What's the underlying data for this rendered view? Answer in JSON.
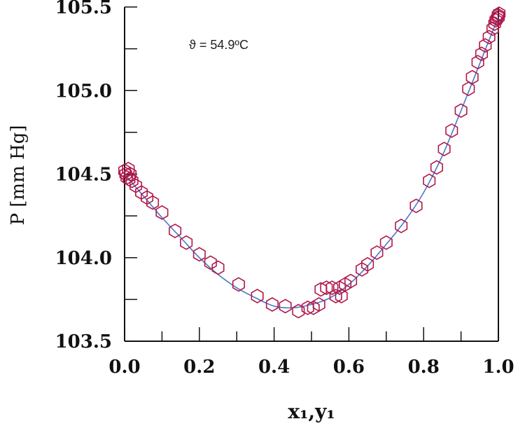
{
  "chart_data": {
    "type": "scatter",
    "title": "",
    "annotation": "ϑ = 54.9ºC",
    "xlabel": "x₁,y₁",
    "ylabel": "P [mm Hg]",
    "xlim": [
      0.0,
      1.0
    ],
    "ylim": [
      103.5,
      105.5
    ],
    "xticks": [
      "0.0",
      "0.2",
      "0.4",
      "0.6",
      "0.8",
      "1.0"
    ],
    "yticks": [
      "103.5",
      "104.0",
      "104.5",
      "105.0",
      "105.5"
    ],
    "grid": false,
    "colors": {
      "points": "#b0184a",
      "curve": "#4a78c8",
      "axis": "#111111"
    },
    "series": [
      {
        "type": "scatter",
        "marker": "hexagon-open",
        "points": [
          [
            0.0,
            104.52
          ],
          [
            0.003,
            104.5
          ],
          [
            0.006,
            104.48
          ],
          [
            0.01,
            104.53
          ],
          [
            0.012,
            104.47
          ],
          [
            0.015,
            104.5
          ],
          [
            0.02,
            104.46
          ],
          [
            0.03,
            104.43
          ],
          [
            0.045,
            104.39
          ],
          [
            0.06,
            104.36
          ],
          [
            0.075,
            104.33
          ],
          [
            0.1,
            104.27
          ],
          [
            0.135,
            104.16
          ],
          [
            0.165,
            104.09
          ],
          [
            0.2,
            104.02
          ],
          [
            0.23,
            103.97
          ],
          [
            0.25,
            103.94
          ],
          [
            0.305,
            103.84
          ],
          [
            0.355,
            103.77
          ],
          [
            0.395,
            103.72
          ],
          [
            0.43,
            103.71
          ],
          [
            0.465,
            103.68
          ],
          [
            0.49,
            103.7
          ],
          [
            0.505,
            103.7
          ],
          [
            0.52,
            103.72
          ],
          [
            0.525,
            103.81
          ],
          [
            0.54,
            103.82
          ],
          [
            0.555,
            103.82
          ],
          [
            0.565,
            103.77
          ],
          [
            0.575,
            103.82
          ],
          [
            0.58,
            103.77
          ],
          [
            0.59,
            103.84
          ],
          [
            0.605,
            103.86
          ],
          [
            0.635,
            103.93
          ],
          [
            0.65,
            103.96
          ],
          [
            0.675,
            104.03
          ],
          [
            0.7,
            104.09
          ],
          [
            0.74,
            104.19
          ],
          [
            0.78,
            104.31
          ],
          [
            0.815,
            104.46
          ],
          [
            0.835,
            104.54
          ],
          [
            0.855,
            104.65
          ],
          [
            0.875,
            104.76
          ],
          [
            0.9,
            104.88
          ],
          [
            0.92,
            105.01
          ],
          [
            0.93,
            105.08
          ],
          [
            0.945,
            105.17
          ],
          [
            0.955,
            105.22
          ],
          [
            0.965,
            105.27
          ],
          [
            0.975,
            105.32
          ],
          [
            0.985,
            105.37
          ],
          [
            0.99,
            105.4
          ],
          [
            0.993,
            105.42
          ],
          [
            0.996,
            105.43
          ],
          [
            0.999,
            105.45
          ],
          [
            1.0,
            105.44
          ],
          [
            1.002,
            105.46
          ]
        ]
      },
      {
        "type": "line",
        "points": [
          [
            0.0,
            104.5
          ],
          [
            0.05,
            104.37
          ],
          [
            0.1,
            104.24
          ],
          [
            0.15,
            104.12
          ],
          [
            0.2,
            104.0
          ],
          [
            0.25,
            103.9
          ],
          [
            0.3,
            103.82
          ],
          [
            0.35,
            103.76
          ],
          [
            0.4,
            103.71
          ],
          [
            0.45,
            103.7
          ],
          [
            0.5,
            103.72
          ],
          [
            0.55,
            103.76
          ],
          [
            0.6,
            103.84
          ],
          [
            0.65,
            103.95
          ],
          [
            0.7,
            104.08
          ],
          [
            0.75,
            104.22
          ],
          [
            0.8,
            104.39
          ],
          [
            0.85,
            104.61
          ],
          [
            0.9,
            104.88
          ],
          [
            0.95,
            105.16
          ],
          [
            0.98,
            105.33
          ],
          [
            1.0,
            105.44
          ]
        ]
      }
    ]
  }
}
